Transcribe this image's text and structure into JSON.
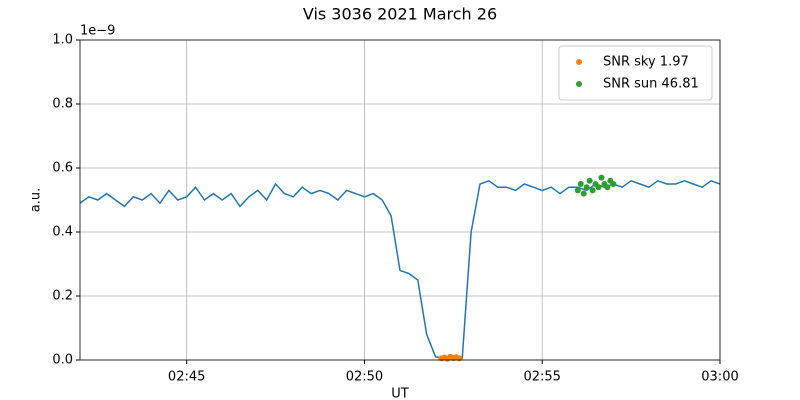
{
  "chart_data": {
    "type": "line",
    "title": "Vis 3036 2021 March 26",
    "x_label": "UT",
    "y_label": "a.u.",
    "y_offset_label": "1e−9",
    "xlim": [
      "02:42:00",
      "03:00:00"
    ],
    "xticks": [
      {
        "value": "02:45:00",
        "label": "02:45"
      },
      {
        "value": "02:50:00",
        "label": "02:50"
      },
      {
        "value": "02:55:00",
        "label": "02:55"
      },
      {
        "value": "03:00:00",
        "label": "03:00"
      }
    ],
    "ylim": [
      0,
      1.0
    ],
    "yticks": [
      {
        "value": 0,
        "label": "0.0"
      },
      0.2,
      0.4,
      0.6,
      0.8,
      {
        "value": 1.0,
        "label": "1.0"
      }
    ],
    "grid": true,
    "legend": "upper right",
    "series": [
      {
        "type": "line",
        "color": "#1f77b4",
        "x": [
          "02:42:00",
          "02:42:15",
          "02:42:30",
          "02:42:45",
          "02:43:00",
          "02:43:15",
          "02:43:30",
          "02:43:45",
          "02:44:00",
          "02:44:15",
          "02:44:30",
          "02:44:45",
          "02:45:00",
          "02:45:15",
          "02:45:30",
          "02:45:45",
          "02:46:00",
          "02:46:15",
          "02:46:30",
          "02:46:45",
          "02:47:00",
          "02:47:15",
          "02:47:30",
          "02:47:45",
          "02:48:00",
          "02:48:15",
          "02:48:30",
          "02:48:45",
          "02:49:00",
          "02:49:15",
          "02:49:30",
          "02:49:45",
          "02:50:00",
          "02:50:15",
          "02:50:30",
          "02:50:45",
          "02:51:00",
          "02:51:15",
          "02:51:30",
          "02:51:45",
          "02:52:00",
          "02:52:15",
          "02:52:30",
          "02:52:45",
          "02:53:00",
          "02:53:15",
          "02:53:30",
          "02:53:45",
          "02:54:00",
          "02:54:15",
          "02:54:30",
          "02:54:45",
          "02:55:00",
          "02:55:15",
          "02:55:30",
          "02:55:45",
          "02:56:00",
          "02:56:15",
          "02:56:30",
          "02:56:45",
          "02:57:00",
          "02:57:15",
          "02:57:30",
          "02:57:45",
          "02:58:00",
          "02:58:15",
          "02:58:30",
          "02:58:45",
          "02:59:00",
          "02:59:15",
          "02:59:30",
          "02:59:45",
          "03:00:00"
        ],
        "values": [
          0.49,
          0.51,
          0.5,
          0.52,
          0.5,
          0.48,
          0.51,
          0.5,
          0.52,
          0.49,
          0.53,
          0.5,
          0.51,
          0.54,
          0.5,
          0.52,
          0.5,
          0.52,
          0.48,
          0.51,
          0.53,
          0.5,
          0.55,
          0.52,
          0.51,
          0.54,
          0.52,
          0.53,
          0.52,
          0.5,
          0.53,
          0.52,
          0.51,
          0.52,
          0.5,
          0.45,
          0.28,
          0.27,
          0.25,
          0.08,
          0.01,
          0.005,
          0.01,
          0.005,
          0.4,
          0.55,
          0.56,
          0.54,
          0.54,
          0.53,
          0.55,
          0.54,
          0.53,
          0.54,
          0.52,
          0.54,
          0.54,
          0.53,
          0.55,
          0.54,
          0.55,
          0.54,
          0.56,
          0.55,
          0.54,
          0.56,
          0.55,
          0.55,
          0.56,
          0.55,
          0.54,
          0.56,
          0.55
        ]
      },
      {
        "type": "scatter",
        "name": "SNR sky 1.97",
        "color": "#ff7f0e",
        "x": [
          "02:52:10",
          "02:52:15",
          "02:52:20",
          "02:52:25",
          "02:52:30",
          "02:52:35",
          "02:52:40"
        ],
        "values": [
          0.005,
          0.008,
          0.004,
          0.01,
          0.006,
          0.009,
          0.005
        ]
      },
      {
        "type": "scatter",
        "name": "SNR sun 46.81",
        "color": "#2ca02c",
        "x": [
          "02:56:00",
          "02:56:05",
          "02:56:10",
          "02:56:15",
          "02:56:20",
          "02:56:25",
          "02:56:30",
          "02:56:35",
          "02:56:40",
          "02:56:45",
          "02:56:50",
          "02:56:55",
          "02:57:00"
        ],
        "values": [
          0.53,
          0.55,
          0.52,
          0.54,
          0.56,
          0.53,
          0.55,
          0.54,
          0.57,
          0.55,
          0.54,
          0.56,
          0.55
        ]
      }
    ]
  }
}
